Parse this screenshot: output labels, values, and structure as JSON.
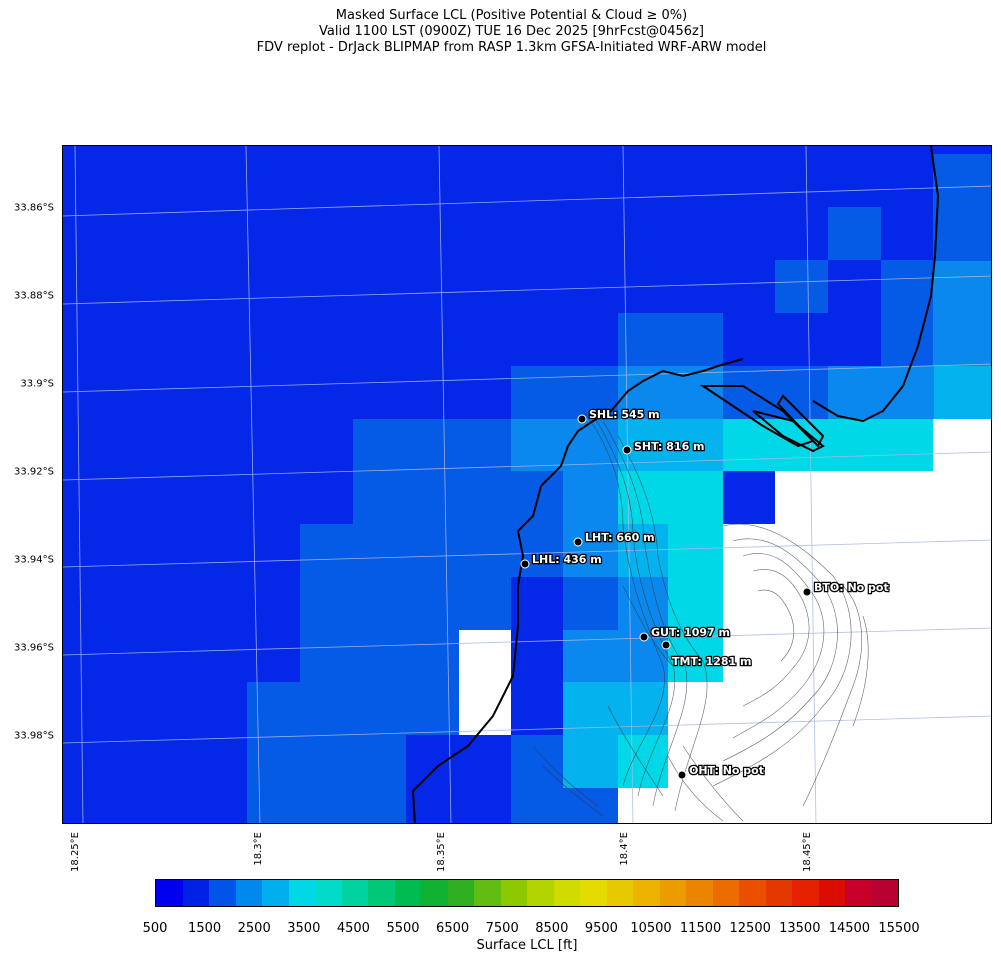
{
  "title": {
    "line1": "Masked Surface LCL (Positive Potential & Cloud ≥ 0%)",
    "line2": "Valid 1100 LST (0900Z) TUE 16 Dec 2025 [9hrFcst@0456z]",
    "line3": "FDV replot - DrJack BLIPMAP from RASP 1.3km GFSA-Initiated WRF-ARW model"
  },
  "lat_labels": [
    "33.86°S",
    "33.88°S",
    "33.9°S",
    "33.92°S",
    "33.94°S",
    "33.96°S",
    "33.98°S"
  ],
  "lon_labels": [
    "18.25°E",
    "18.3°E",
    "18.35°E",
    "18.4°E",
    "18.45°E"
  ],
  "stations": [
    {
      "label": "SHL: 545 m",
      "id": "SHL"
    },
    {
      "label": "SHT: 816 m",
      "id": "SHT"
    },
    {
      "label": "LHT: 660 m",
      "id": "LHT"
    },
    {
      "label": "LHL: 436 m",
      "id": "LHL"
    },
    {
      "label": "GUT: 1097 m",
      "id": "GUT"
    },
    {
      "label": "TMT: 1281 m",
      "id": "TMT"
    },
    {
      "label": "BTO: No pot",
      "id": "BTO"
    },
    {
      "label": "OHT: No pot",
      "id": "OHT"
    }
  ],
  "colorbar": {
    "label": "Surface LCL [ft]",
    "tick_labels": [
      "500",
      "1500",
      "2500",
      "3500",
      "4500",
      "5500",
      "6500",
      "7500",
      "8500",
      "9500",
      "10500",
      "11500",
      "12500",
      "13500",
      "14500",
      "15500"
    ],
    "colors": [
      "#0000ee",
      "#0022e6",
      "#0055e8",
      "#0088ee",
      "#00b0ee",
      "#00d8e8",
      "#00dcc8",
      "#00d2a0",
      "#00c878",
      "#00bc50",
      "#10b030",
      "#30b020",
      "#60bc10",
      "#8cc800",
      "#b4d400",
      "#d0dc00",
      "#e4dc00",
      "#e8c800",
      "#ecb400",
      "#ec9c00",
      "#ec8400",
      "#ec6c00",
      "#e85000",
      "#e43800",
      "#e42000",
      "#dc0c00",
      "#c80028",
      "#b80030"
    ]
  },
  "legend_colors": {
    "c1000": "#0528e8",
    "c1500": "#055ae6",
    "c2000": "#0a88ee",
    "c2500": "#04b2ee",
    "c3000": "#00d8e8",
    "land_mask": "#ffffff"
  }
}
